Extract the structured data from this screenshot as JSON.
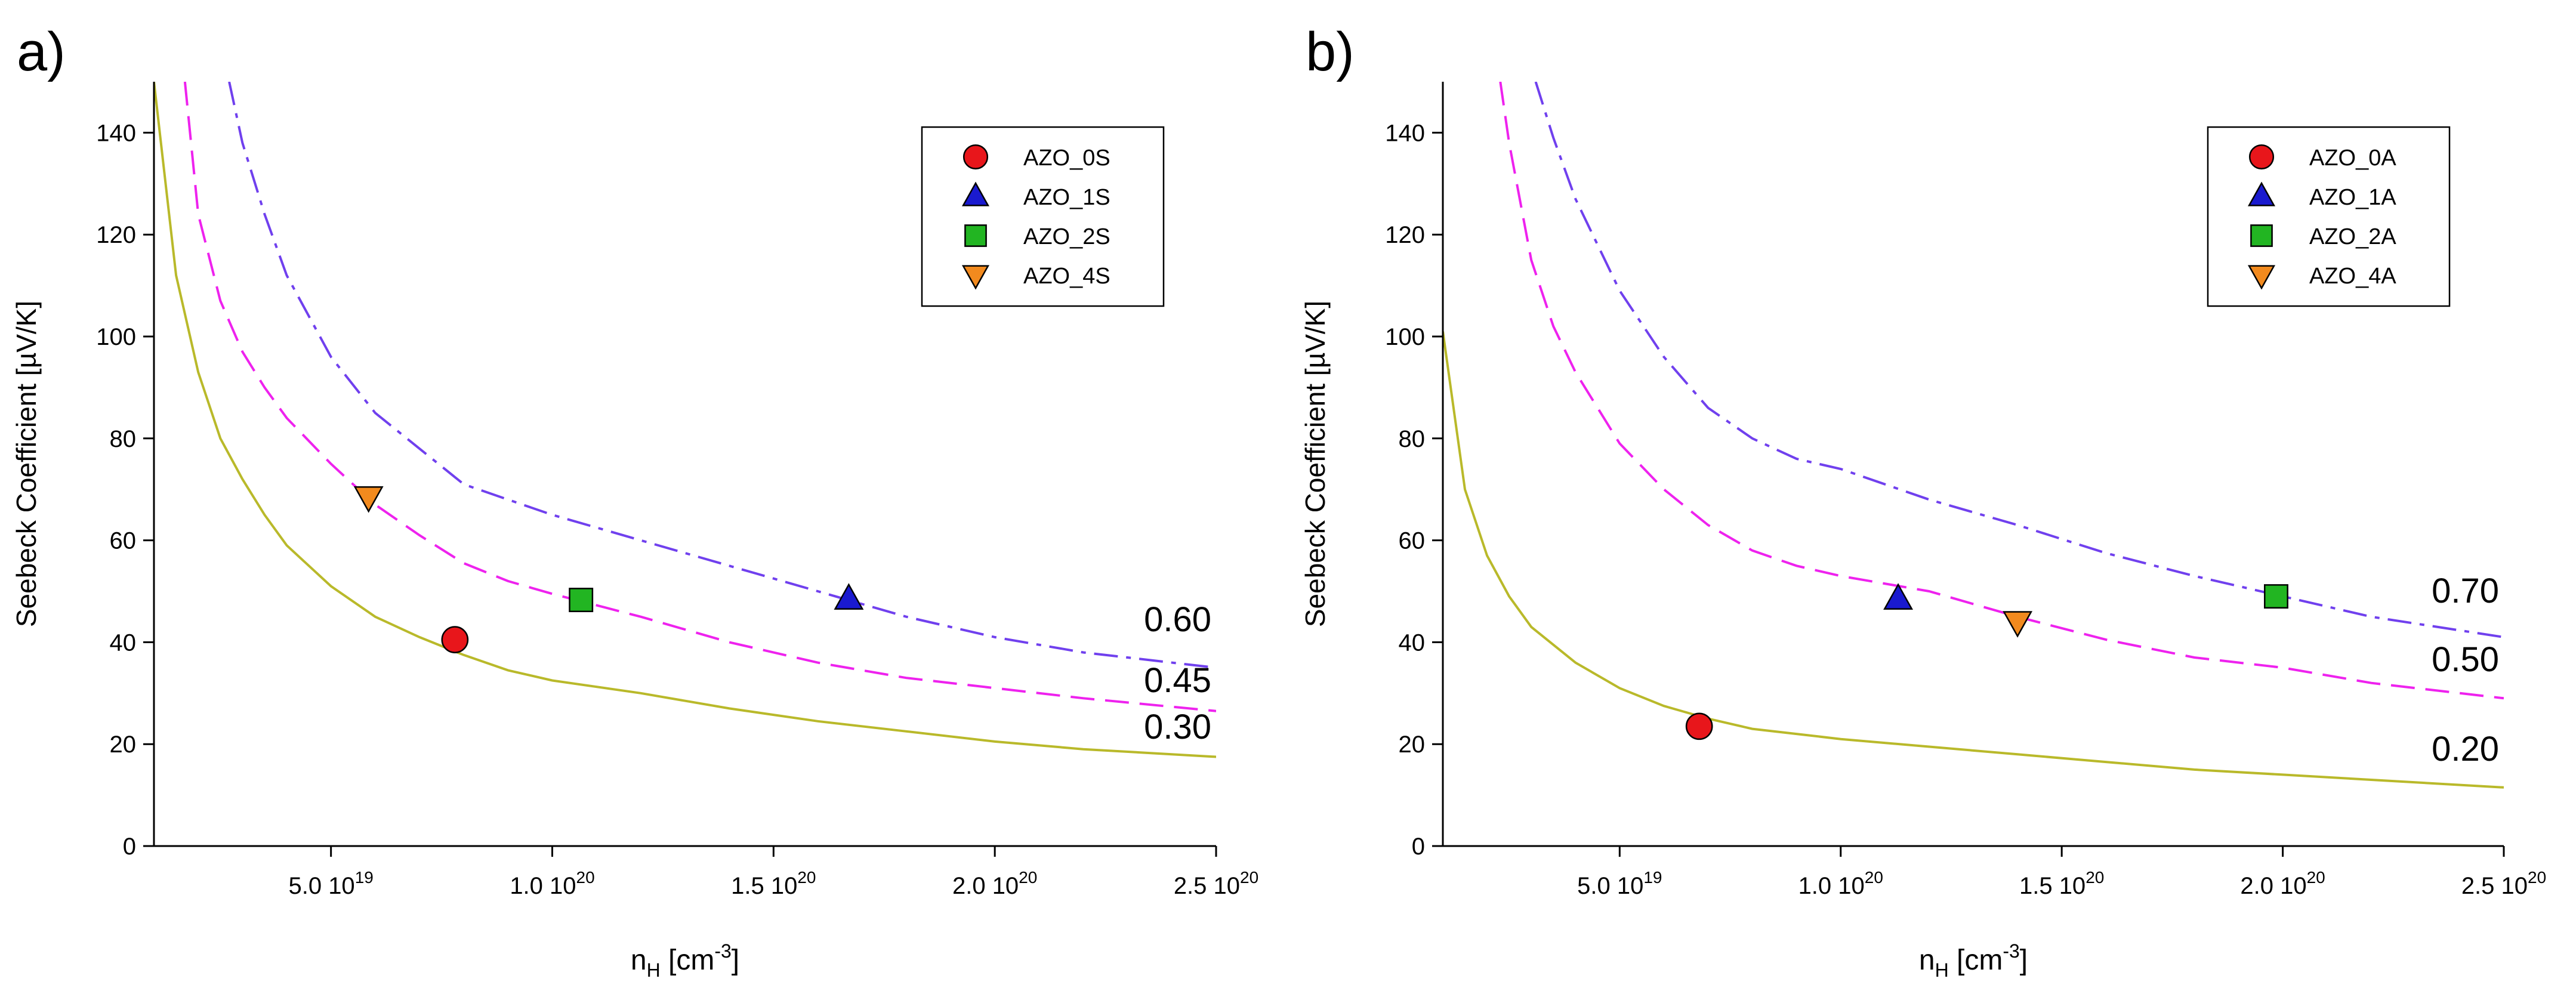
{
  "chart_data": [
    {
      "type": "scatter",
      "panel_label": "a)",
      "xlabel": "n",
      "xlabel_sub": "H",
      "xlabel_unit_pre": " [cm",
      "xlabel_unit_sup": "-3",
      "xlabel_unit_post": "]",
      "ylabel": "Seebeck Coefficient [µV/K]",
      "xlim": [
        1e+19,
        2.5e+20
      ],
      "ylim": [
        0,
        150
      ],
      "x_ticks": [
        {
          "value": 5e+19,
          "mant": "5.0 10",
          "exp": "19"
        },
        {
          "value": 1e+20,
          "mant": "1.0 10",
          "exp": "20"
        },
        {
          "value": 1.5e+20,
          "mant": "1.5 10",
          "exp": "20"
        },
        {
          "value": 2e+20,
          "mant": "2.0 10",
          "exp": "20"
        },
        {
          "value": 2.5e+20,
          "mant": "2.5 10",
          "exp": "20"
        }
      ],
      "y_ticks": [
        0,
        20,
        40,
        60,
        80,
        100,
        120,
        140
      ],
      "grid": false,
      "legend_position": "top-right",
      "series": [
        {
          "name": "AZO_0S",
          "marker": "circle",
          "color": "#e8161b",
          "points": [
            {
              "x": 7.8e+19,
              "y": 40.5
            }
          ]
        },
        {
          "name": "AZO_1S",
          "marker": "triangle-up",
          "color": "#1a1acf",
          "points": [
            {
              "x": 1.67e+20,
              "y": 48.5
            }
          ]
        },
        {
          "name": "AZO_2S",
          "marker": "square",
          "color": "#22b522",
          "points": [
            {
              "x": 1.065e+20,
              "y": 48.3
            }
          ]
        },
        {
          "name": "AZO_4S",
          "marker": "triangle-down",
          "color": "#f28a1e",
          "points": [
            {
              "x": 5.85e+19,
              "y": 68.5
            }
          ]
        }
      ],
      "curves": [
        {
          "label": "0.30",
          "style": "solid",
          "color": "#b9b92a",
          "points": [
            [
              1e+19,
              150
            ],
            [
              1.5e+19,
              112
            ],
            [
              2e+19,
              93
            ],
            [
              2.5e+19,
              80
            ],
            [
              3e+19,
              72
            ],
            [
              3.5e+19,
              65
            ],
            [
              4e+19,
              59
            ],
            [
              5e+19,
              51
            ],
            [
              6e+19,
              45
            ],
            [
              7e+19,
              41
            ],
            [
              8e+19,
              37.5
            ],
            [
              9e+19,
              34.5
            ],
            [
              1e+20,
              32.5
            ],
            [
              1.2e+20,
              30
            ],
            [
              1.4e+20,
              27
            ],
            [
              1.6e+20,
              24.5
            ],
            [
              1.8e+20,
              22.5
            ],
            [
              2e+20,
              20.5
            ],
            [
              2.2e+20,
              19
            ],
            [
              2.5e+20,
              17.5
            ]
          ]
        },
        {
          "label": "0.45",
          "style": "dashed",
          "color": "#ee22ee",
          "points": [
            [
              1.7e+19,
              150
            ],
            [
              2e+19,
              124
            ],
            [
              2.5e+19,
              107
            ],
            [
              3e+19,
              97
            ],
            [
              3.5e+19,
              90
            ],
            [
              4e+19,
              84
            ],
            [
              5e+19,
              75
            ],
            [
              6e+19,
              67
            ],
            [
              7e+19,
              61
            ],
            [
              8e+19,
              55.5
            ],
            [
              9e+19,
              52
            ],
            [
              1e+20,
              49.5
            ],
            [
              1.2e+20,
              45
            ],
            [
              1.4e+20,
              40
            ],
            [
              1.6e+20,
              36
            ],
            [
              1.8e+20,
              33
            ],
            [
              2e+20,
              31
            ],
            [
              2.2e+20,
              29
            ],
            [
              2.5e+20,
              26.5
            ]
          ]
        },
        {
          "label": "0.60",
          "style": "dashdot",
          "color": "#7040ee",
          "points": [
            [
              2.7e+19,
              150
            ],
            [
              3e+19,
              138
            ],
            [
              3.5e+19,
              124
            ],
            [
              4e+19,
              112
            ],
            [
              5e+19,
              96
            ],
            [
              6e+19,
              85
            ],
            [
              7e+19,
              78
            ],
            [
              8e+19,
              71
            ],
            [
              9e+19,
              68
            ],
            [
              1e+20,
              65
            ],
            [
              1.2e+20,
              60
            ],
            [
              1.4e+20,
              55
            ],
            [
              1.6e+20,
              50
            ],
            [
              1.8e+20,
              45
            ],
            [
              2e+20,
              41
            ],
            [
              2.2e+20,
              38
            ],
            [
              2.5e+20,
              35
            ]
          ]
        }
      ]
    },
    {
      "type": "scatter",
      "panel_label": "b)",
      "xlabel": "n",
      "xlabel_sub": "H",
      "xlabel_unit_pre": " [cm",
      "xlabel_unit_sup": "-3",
      "xlabel_unit_post": "]",
      "ylabel": "Seebeck Coefficient [µV/K]",
      "xlim": [
        1e+19,
        2.5e+20
      ],
      "ylim": [
        0,
        150
      ],
      "x_ticks": [
        {
          "value": 5e+19,
          "mant": "5.0 10",
          "exp": "19"
        },
        {
          "value": 1e+20,
          "mant": "1.0 10",
          "exp": "20"
        },
        {
          "value": 1.5e+20,
          "mant": "1.5 10",
          "exp": "20"
        },
        {
          "value": 2e+20,
          "mant": "2.0 10",
          "exp": "20"
        },
        {
          "value": 2.5e+20,
          "mant": "2.5 10",
          "exp": "20"
        }
      ],
      "y_ticks": [
        0,
        20,
        40,
        60,
        80,
        100,
        120,
        140
      ],
      "grid": false,
      "legend_position": "top-right",
      "series": [
        {
          "name": "AZO_0A",
          "marker": "circle",
          "color": "#e8161b",
          "points": [
            {
              "x": 6.8e+19,
              "y": 23.5
            }
          ]
        },
        {
          "name": "AZO_1A",
          "marker": "triangle-up",
          "color": "#1a1acf",
          "points": [
            {
              "x": 1.13e+20,
              "y": 48.5
            }
          ]
        },
        {
          "name": "AZO_2A",
          "marker": "square",
          "color": "#22b522",
          "points": [
            {
              "x": 1.985e+20,
              "y": 49
            }
          ]
        },
        {
          "name": "AZO_4A",
          "marker": "triangle-down",
          "color": "#f28a1e",
          "points": [
            {
              "x": 1.4e+20,
              "y": 44
            }
          ]
        }
      ],
      "curves": [
        {
          "label": "0.20",
          "style": "solid",
          "color": "#b9b92a",
          "points": [
            [
              1e+19,
              101
            ],
            [
              1.5e+19,
              70
            ],
            [
              2e+19,
              57
            ],
            [
              2.5e+19,
              49
            ],
            [
              3e+19,
              43
            ],
            [
              4e+19,
              36
            ],
            [
              5e+19,
              31
            ],
            [
              6e+19,
              27.5
            ],
            [
              7e+19,
              25
            ],
            [
              8e+19,
              23
            ],
            [
              9e+19,
              22
            ],
            [
              1e+20,
              21
            ],
            [
              1.2e+20,
              19.5
            ],
            [
              1.4e+20,
              18
            ],
            [
              1.6e+20,
              16.5
            ],
            [
              1.8e+20,
              15
            ],
            [
              2e+20,
              14
            ],
            [
              2.2e+20,
              13
            ],
            [
              2.5e+20,
              11.5
            ]
          ]
        },
        {
          "label": "0.50",
          "style": "dashed",
          "color": "#ee22ee",
          "points": [
            [
              2.3e+19,
              150
            ],
            [
              2.5e+19,
              138
            ],
            [
              3e+19,
              115
            ],
            [
              3.5e+19,
              102
            ],
            [
              4e+19,
              93
            ],
            [
              5e+19,
              79
            ],
            [
              6e+19,
              70
            ],
            [
              7e+19,
              63
            ],
            [
              8e+19,
              58
            ],
            [
              9e+19,
              55
            ],
            [
              1e+20,
              53
            ],
            [
              1.2e+20,
              50
            ],
            [
              1.4e+20,
              45
            ],
            [
              1.6e+20,
              40.5
            ],
            [
              1.8e+20,
              37
            ],
            [
              2e+20,
              35
            ],
            [
              2.2e+20,
              32
            ],
            [
              2.5e+20,
              29
            ]
          ]
        },
        {
          "label": "0.70",
          "style": "dashdot",
          "color": "#7040ee",
          "points": [
            [
              3.1e+19,
              150
            ],
            [
              3.5e+19,
              139
            ],
            [
              4e+19,
              127
            ],
            [
              5e+19,
              109
            ],
            [
              6e+19,
              96
            ],
            [
              7e+19,
              86
            ],
            [
              8e+19,
              80
            ],
            [
              9e+19,
              76
            ],
            [
              1e+20,
              74
            ],
            [
              1.2e+20,
              68
            ],
            [
              1.4e+20,
              63
            ],
            [
              1.6e+20,
              57.5
            ],
            [
              1.8e+20,
              53
            ],
            [
              2e+20,
              49
            ],
            [
              2.2e+20,
              45
            ],
            [
              2.5e+20,
              41
            ]
          ]
        }
      ]
    }
  ]
}
